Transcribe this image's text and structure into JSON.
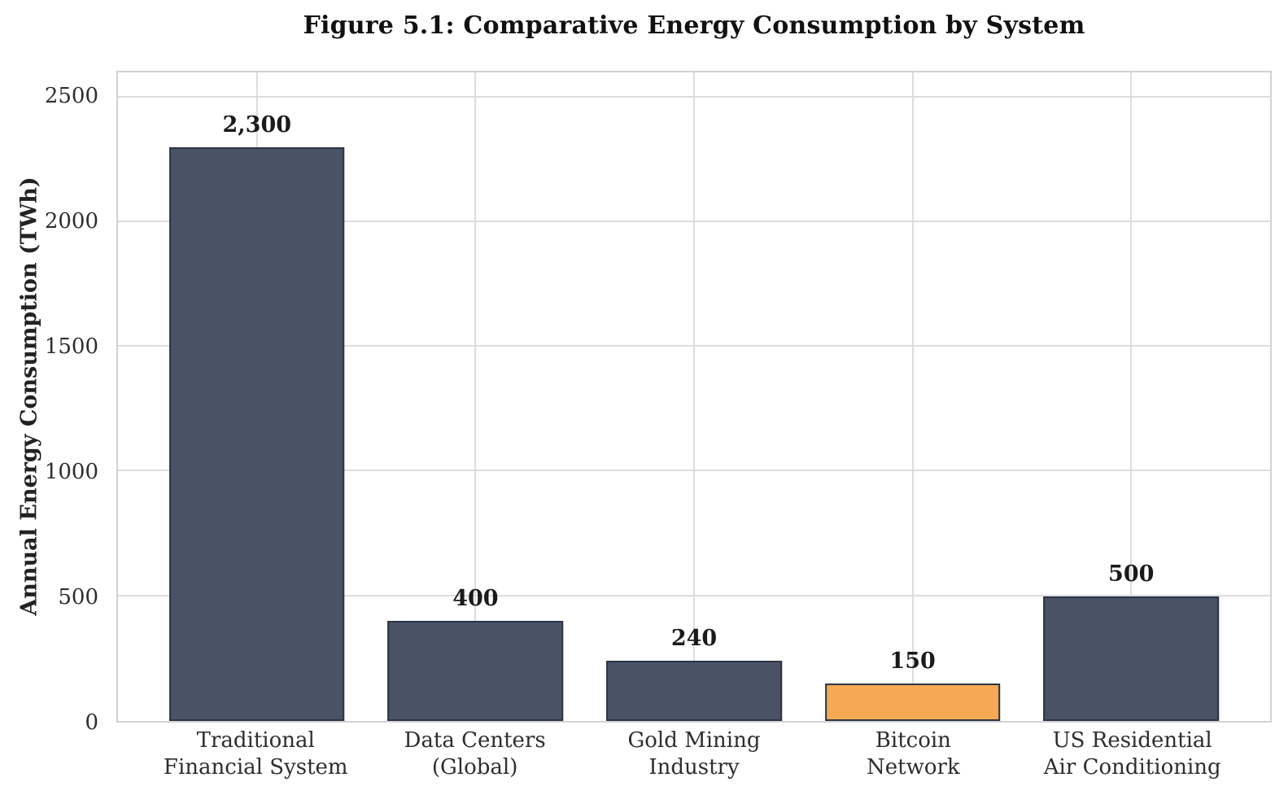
{
  "figure": {
    "title": "Figure 5.1: Comparative Energy Consumption by System"
  },
  "chart_data": {
    "type": "bar",
    "title": "Figure 5.1: Comparative Energy Consumption by System",
    "xlabel": "",
    "ylabel": "Annual Energy Consumption (TWh)",
    "categories": [
      "Traditional Financial System",
      "Data Centers (Global)",
      "Gold Mining Industry",
      "Bitcoin Network",
      "US Residential Air Conditioning"
    ],
    "category_lines": [
      [
        "Traditional",
        "Financial System"
      ],
      [
        "Data Centers",
        "(Global)"
      ],
      [
        "Gold Mining",
        "Industry"
      ],
      [
        "Bitcoin",
        "Network"
      ],
      [
        "US Residential",
        "Air Conditioning"
      ]
    ],
    "values": [
      2300,
      400,
      240,
      150,
      500
    ],
    "value_labels": [
      "2,300",
      "400",
      "240",
      "150",
      "500"
    ],
    "bar_colors": [
      "#4A5366",
      "#4A5366",
      "#4A5366",
      "#F5A954",
      "#4A5366"
    ],
    "bar_edge_color": "#2B3447",
    "highlight_index": 3,
    "highlight_color": "#F5A954",
    "base_color": "#4A5366",
    "yticks": [
      0,
      500,
      1000,
      1500,
      2000,
      2500
    ],
    "ylim": [
      0,
      2600
    ],
    "grid": true,
    "legend": false
  }
}
